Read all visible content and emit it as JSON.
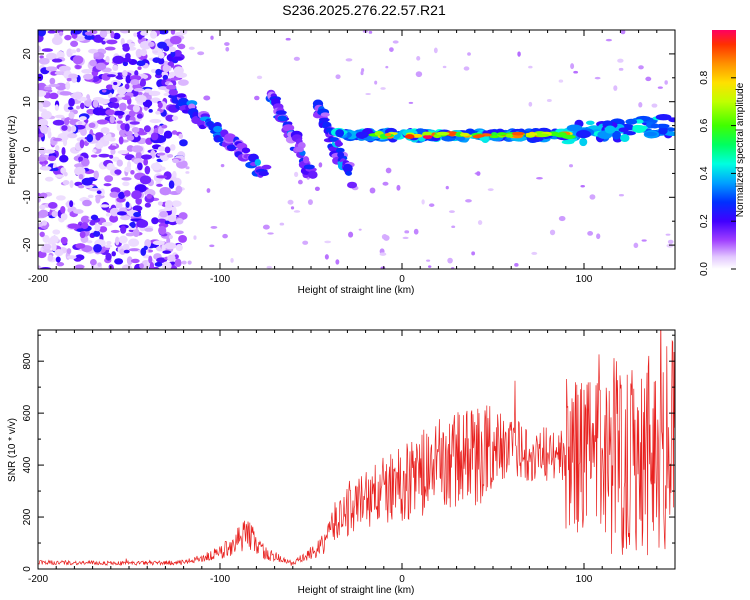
{
  "title": "S236.2025.276.22.57.R21",
  "colors": {
    "snr_line": "#e8201e",
    "frame": "#000000"
  },
  "chart_data": [
    {
      "type": "heatmap",
      "name": "spectrogram",
      "xlabel": "Height of straight line (km)",
      "ylabel": "Frequency (Hz)",
      "xlim": [
        -200,
        150
      ],
      "ylim": [
        -25,
        25
      ],
      "xticks": [
        -200,
        -100,
        0,
        100
      ],
      "yticks": [
        -20,
        -10,
        0,
        10,
        20
      ],
      "colorbar": {
        "label": "Normalized spectral amplitude",
        "ticks": [
          "0.0",
          "0.2",
          "0.4",
          "0.6",
          "0.8"
        ],
        "range": [
          0,
          1
        ]
      },
      "features": [
        {
          "name": "scattered-noise",
          "x_range": [
            -200,
            -120
          ],
          "freq_range": [
            -25,
            25
          ]
        },
        {
          "name": "diagonal-branch-1",
          "from": [
            -127,
            12
          ],
          "to": [
            -75,
            -5
          ]
        },
        {
          "name": "diagonal-branch-2",
          "from": [
            -72,
            12
          ],
          "to": [
            -50,
            -5
          ]
        },
        {
          "name": "diagonal-branch-3",
          "from": [
            -47,
            9
          ],
          "to": [
            -28,
            -6
          ]
        },
        {
          "name": "main-trace",
          "from": [
            -35,
            4
          ],
          "to": [
            150,
            5
          ],
          "peak_frequency_hz": 3
        }
      ]
    },
    {
      "type": "line",
      "name": "snr",
      "xlabel": "Height of straight line (km)",
      "ylabel": "SNR (10 * v/v)",
      "xlim": [
        -200,
        150
      ],
      "ylim": [
        0,
        920
      ],
      "xticks": [
        -200,
        -100,
        0,
        100
      ],
      "yticks": [
        0,
        200,
        400,
        600,
        800
      ],
      "envelope": [
        {
          "x": -200,
          "y": 25
        },
        {
          "x": -150,
          "y": 22
        },
        {
          "x": -120,
          "y": 25
        },
        {
          "x": -100,
          "y": 60
        },
        {
          "x": -85,
          "y": 140
        },
        {
          "x": -75,
          "y": 60
        },
        {
          "x": -60,
          "y": 20
        },
        {
          "x": -45,
          "y": 80
        },
        {
          "x": -35,
          "y": 200
        },
        {
          "x": -20,
          "y": 270
        },
        {
          "x": 0,
          "y": 330
        },
        {
          "x": 20,
          "y": 400
        },
        {
          "x": 40,
          "y": 440
        },
        {
          "x": 60,
          "y": 460
        },
        {
          "x": 80,
          "y": 440
        },
        {
          "x": 100,
          "y": 430
        },
        {
          "x": 120,
          "y": 450
        },
        {
          "x": 140,
          "y": 480
        },
        {
          "x": 150,
          "y": 470
        }
      ]
    }
  ]
}
